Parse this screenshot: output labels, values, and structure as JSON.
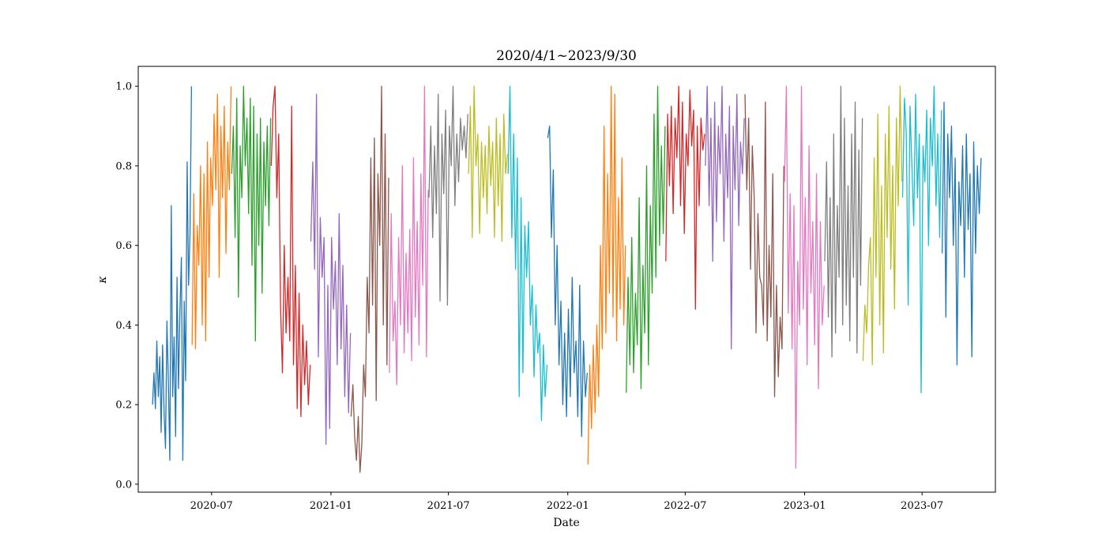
{
  "chart_data": {
    "type": "line",
    "title": "2020/4/1~2023/9/30",
    "xlabel": "Date",
    "ylabel": "κ",
    "xlim": [
      "2020-03-10",
      "2023-10-22"
    ],
    "ylim": [
      -0.02,
      1.05
    ],
    "grid": false,
    "legend": false,
    "xticks": [
      "2020-07",
      "2021-01",
      "2021-07",
      "2022-01",
      "2022-07",
      "2023-01",
      "2023-07"
    ],
    "yticks": [
      "0.0",
      "0.2",
      "0.4",
      "0.6",
      "0.8",
      "1.0"
    ],
    "series": [
      {
        "color": "#1f77b4",
        "start": "2020-04-01",
        "end": "2020-05-31",
        "values": [
          0.2,
          0.28,
          0.19,
          0.36,
          0.22,
          0.32,
          0.13,
          0.35,
          0.18,
          0.09,
          0.41,
          0.26,
          0.06,
          0.7,
          0.22,
          0.37,
          0.12,
          0.52,
          0.24,
          0.43,
          0.57,
          0.06,
          0.46,
          0.26,
          0.81,
          0.5,
          0.63,
          1.0
        ]
      },
      {
        "color": "#ff7f0e",
        "start": "2020-06-01",
        "end": "2020-07-31",
        "values": [
          0.35,
          0.73,
          0.34,
          0.65,
          0.55,
          0.8,
          0.4,
          0.78,
          0.36,
          0.86,
          0.52,
          0.82,
          0.7,
          0.93,
          0.74,
          0.98,
          0.52,
          0.9,
          0.72,
          0.95,
          0.58,
          0.86,
          0.74,
          1.0
        ]
      },
      {
        "color": "#2ca02c",
        "start": "2020-08-01",
        "end": "2020-09-30",
        "values": [
          0.78,
          0.9,
          0.62,
          0.97,
          0.47,
          0.85,
          0.72,
          1.0,
          0.8,
          0.92,
          0.68,
          0.97,
          0.55,
          0.95,
          0.36,
          0.88,
          0.6,
          0.92,
          0.48,
          0.86,
          0.7,
          0.9,
          0.65,
          0.92
        ]
      },
      {
        "color": "#d62728",
        "start": "2020-10-01",
        "end": "2020-11-30",
        "values": [
          0.8,
          0.95,
          1.0,
          0.72,
          0.88,
          0.45,
          0.28,
          0.6,
          0.38,
          0.52,
          0.36,
          0.95,
          0.3,
          0.55,
          0.19,
          0.48,
          0.17,
          0.4,
          0.25,
          0.36,
          0.2,
          0.3
        ]
      },
      {
        "color": "#9467bd",
        "start": "2020-12-01",
        "end": "2021-01-31",
        "values": [
          0.61,
          0.81,
          0.54,
          0.98,
          0.32,
          0.67,
          0.52,
          0.62,
          0.1,
          0.5,
          0.14,
          0.62,
          0.44,
          0.56,
          0.3,
          0.68,
          0.34,
          0.55,
          0.22,
          0.45,
          0.18,
          0.38
        ]
      },
      {
        "color": "#8c564b",
        "start": "2021-02-01",
        "end": "2021-03-31",
        "values": [
          0.17,
          0.25,
          0.12,
          0.06,
          0.17,
          0.03,
          0.1,
          0.3,
          0.22,
          0.52,
          0.38,
          0.82,
          0.45,
          0.87,
          0.21,
          0.78,
          0.6,
          1.0,
          0.4,
          0.88,
          0.3,
          0.77
        ]
      },
      {
        "color": "#e377c2",
        "start": "2021-04-01",
        "end": "2021-05-31",
        "values": [
          0.28,
          0.68,
          0.36,
          0.46,
          0.25,
          0.62,
          0.4,
          0.8,
          0.33,
          0.58,
          0.38,
          0.64,
          0.31,
          0.82,
          0.42,
          0.66,
          0.35,
          0.78,
          0.5,
          1.0,
          0.32,
          0.74
        ]
      },
      {
        "color": "#7f7f7f",
        "start": "2021-06-01",
        "end": "2021-07-31",
        "values": [
          0.72,
          0.9,
          0.62,
          0.85,
          0.68,
          0.98,
          0.46,
          0.88,
          0.73,
          0.94,
          0.45,
          0.9,
          0.8,
          1.0,
          0.7,
          0.88,
          0.76,
          0.92,
          0.84,
          0.9,
          0.82,
          0.93
        ]
      },
      {
        "color": "#bcbd22",
        "start": "2021-08-01",
        "end": "2021-09-30",
        "values": [
          0.78,
          0.95,
          0.62,
          1.0,
          0.8,
          0.88,
          0.63,
          0.86,
          0.72,
          0.85,
          0.68,
          0.9,
          0.75,
          0.86,
          0.62,
          0.92,
          0.7,
          0.88,
          0.61,
          0.93,
          0.78,
          0.83
        ]
      },
      {
        "color": "#17becf",
        "start": "2021-10-01",
        "end": "2021-11-30",
        "values": [
          0.78,
          1.0,
          0.62,
          0.88,
          0.54,
          0.82,
          0.22,
          0.72,
          0.28,
          0.65,
          0.52,
          0.66,
          0.4,
          0.5,
          0.27,
          0.45,
          0.33,
          0.38,
          0.16,
          0.35,
          0.22,
          0.3
        ]
      },
      {
        "color": "#1f77b4",
        "start": "2021-12-01",
        "end": "2022-01-31",
        "values": [
          0.87,
          0.9,
          0.62,
          0.79,
          0.4,
          0.6,
          0.3,
          0.46,
          0.2,
          0.38,
          0.17,
          0.44,
          0.22,
          0.52,
          0.28,
          0.36,
          0.17,
          0.5,
          0.12,
          0.36,
          0.22,
          0.28
        ]
      },
      {
        "color": "#ff7f0e",
        "start": "2022-02-01",
        "end": "2022-03-31",
        "values": [
          0.05,
          0.3,
          0.14,
          0.35,
          0.18,
          0.4,
          0.22,
          0.6,
          0.34,
          0.9,
          0.38,
          0.78,
          0.48,
          1.0,
          0.42,
          0.98,
          0.36,
          0.72,
          0.44,
          0.82,
          0.4,
          0.6
        ]
      },
      {
        "color": "#2ca02c",
        "start": "2022-04-01",
        "end": "2022-05-31",
        "values": [
          0.23,
          0.52,
          0.3,
          0.62,
          0.28,
          0.48,
          0.35,
          0.72,
          0.24,
          0.55,
          0.38,
          0.8,
          0.3,
          0.7,
          0.48,
          0.93,
          0.52,
          1.0,
          0.6,
          0.85,
          0.63,
          0.9
        ]
      },
      {
        "color": "#d62728",
        "start": "2022-06-01",
        "end": "2022-07-31",
        "values": [
          0.56,
          0.93,
          0.75,
          0.95,
          0.68,
          0.92,
          0.82,
          1.0,
          0.7,
          0.96,
          0.63,
          0.88,
          0.8,
          0.99,
          0.85,
          0.94,
          0.44,
          0.9,
          0.7,
          0.92,
          0.84,
          0.88
        ]
      },
      {
        "color": "#9467bd",
        "start": "2022-08-01",
        "end": "2022-09-30",
        "values": [
          0.8,
          1.0,
          0.7,
          0.92,
          0.56,
          0.96,
          0.66,
          0.9,
          0.78,
          1.0,
          0.61,
          0.88,
          0.72,
          0.95,
          0.34,
          0.9,
          0.74,
          0.98,
          0.65,
          0.86,
          0.78,
          0.92
        ]
      },
      {
        "color": "#8c564b",
        "start": "2022-10-01",
        "end": "2022-11-30",
        "values": [
          0.98,
          0.74,
          0.92,
          0.54,
          0.85,
          0.72,
          0.38,
          0.68,
          0.52,
          0.5,
          0.4,
          0.96,
          0.36,
          0.6,
          0.42,
          0.78,
          0.22,
          0.5,
          0.27,
          0.42,
          0.34,
          0.8
        ]
      },
      {
        "color": "#e377c2",
        "start": "2022-12-01",
        "end": "2023-01-31",
        "values": [
          0.76,
          1.0,
          0.43,
          0.73,
          0.34,
          0.7,
          0.04,
          0.56,
          0.4,
          1.0,
          0.44,
          0.72,
          0.3,
          0.85,
          0.48,
          0.66,
          0.35,
          0.78,
          0.24,
          0.66,
          0.4,
          0.5
        ]
      },
      {
        "color": "#7f7f7f",
        "start": "2023-02-01",
        "end": "2023-03-31",
        "values": [
          0.56,
          0.81,
          0.42,
          0.72,
          0.32,
          0.88,
          0.38,
          0.7,
          0.52,
          1.0,
          0.4,
          0.92,
          0.45,
          0.75,
          0.36,
          0.88,
          0.52,
          0.96,
          0.33,
          0.84,
          0.5,
          0.92
        ]
      },
      {
        "color": "#bcbd22",
        "start": "2023-04-01",
        "end": "2023-05-31",
        "values": [
          0.31,
          0.45,
          0.38,
          0.55,
          0.62,
          0.3,
          0.82,
          0.52,
          0.93,
          0.4,
          0.75,
          0.33,
          0.88,
          0.62,
          0.95,
          0.54,
          0.8,
          0.44,
          0.92,
          0.7,
          1.0,
          0.76
        ]
      },
      {
        "color": "#17becf",
        "start": "2023-06-01",
        "end": "2023-07-31",
        "values": [
          0.72,
          0.97,
          0.88,
          0.45,
          0.95,
          0.8,
          0.65,
          0.98,
          0.72,
          0.88,
          0.23,
          0.85,
          0.76,
          0.94,
          0.6,
          0.92,
          0.8,
          1.0,
          0.7,
          0.88,
          0.62,
          0.94
        ]
      },
      {
        "color": "#1f77b4",
        "start": "2023-08-01",
        "end": "2023-09-30",
        "values": [
          0.58,
          0.96,
          0.42,
          0.88,
          0.72,
          0.9,
          0.6,
          0.82,
          0.3,
          0.76,
          0.65,
          0.85,
          0.52,
          0.88,
          0.64,
          0.78,
          0.32,
          0.86,
          0.58,
          0.8,
          0.68,
          0.82
        ]
      }
    ]
  }
}
